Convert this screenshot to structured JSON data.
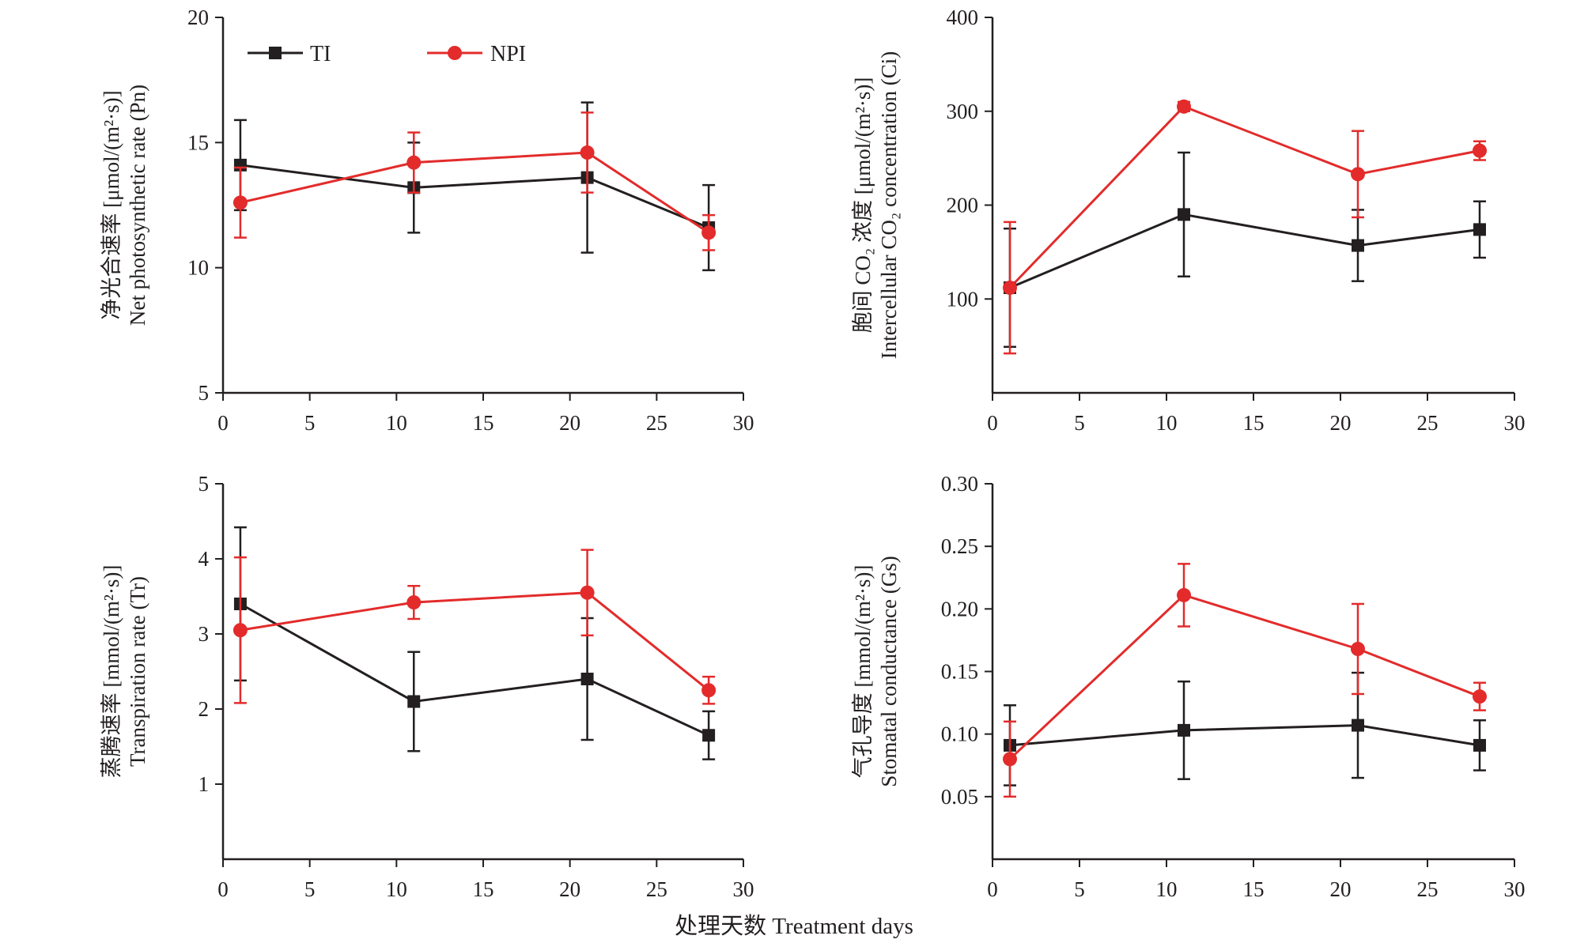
{
  "colors": {
    "TI": "#231f20",
    "NPI": "#e32b2b",
    "axis": "#231f20"
  },
  "legend": [
    {
      "key": "TI",
      "label": "TI",
      "marker": "square"
    },
    {
      "key": "NPI",
      "label": "NPI",
      "marker": "circle"
    }
  ],
  "common_xlabel": "处理天数 Treatment days",
  "chart_data": [
    {
      "type": "line",
      "ylabel_cn": "净光合速率 [μmol/(m²·s)]",
      "ylabel_en": "Net photosynthetic rate (Pn)",
      "xlim": [
        0,
        30
      ],
      "ylim": [
        5,
        20
      ],
      "xticks": [
        0,
        5,
        10,
        15,
        20,
        25,
        30
      ],
      "yticks": [
        5,
        10,
        15,
        20
      ],
      "ytick_labels": [
        "5",
        "10",
        "15",
        "20"
      ],
      "x": [
        1,
        11,
        21,
        28
      ],
      "series": [
        {
          "name": "TI",
          "values": [
            14.1,
            13.2,
            13.6,
            11.6
          ],
          "errors": [
            1.8,
            1.8,
            3.0,
            1.7
          ]
        },
        {
          "name": "NPI",
          "values": [
            12.6,
            14.2,
            14.6,
            11.4
          ],
          "errors": [
            1.4,
            1.2,
            1.6,
            0.7
          ]
        }
      ]
    },
    {
      "type": "line",
      "ylabel_cn": "胞间 CO₂ 浓度 [μmol/(m²·s)]",
      "ylabel_en": "Intercellular CO₂ concentration (Ci)",
      "xlim": [
        0,
        30
      ],
      "ylim": [
        0,
        400
      ],
      "xticks": [
        0,
        5,
        10,
        15,
        20,
        25,
        30
      ],
      "yticks": [
        100,
        200,
        300,
        400
      ],
      "ytick_labels": [
        "100",
        "200",
        "300",
        "400"
      ],
      "x": [
        1,
        11,
        21,
        28
      ],
      "series": [
        {
          "name": "TI",
          "values": [
            112,
            190,
            157,
            174
          ],
          "errors": [
            63,
            66,
            38,
            30
          ]
        },
        {
          "name": "NPI",
          "values": [
            112,
            305,
            233,
            258
          ],
          "errors": [
            70,
            5,
            46,
            10
          ]
        }
      ]
    },
    {
      "type": "line",
      "ylabel_cn": "蒸腾速率 [mmol/(m²·s)]",
      "ylabel_en": "Transpiration rate (Tr)",
      "xlim": [
        0,
        30
      ],
      "ylim": [
        0,
        5
      ],
      "xticks": [
        0,
        5,
        10,
        15,
        20,
        25,
        30
      ],
      "yticks": [
        1,
        2,
        3,
        4,
        5
      ],
      "ytick_labels": [
        "1",
        "2",
        "3",
        "4",
        "5"
      ],
      "x": [
        1,
        11,
        21,
        28
      ],
      "series": [
        {
          "name": "TI",
          "values": [
            3.4,
            2.1,
            2.4,
            1.65
          ],
          "errors": [
            1.02,
            0.66,
            0.81,
            0.32
          ]
        },
        {
          "name": "NPI",
          "values": [
            3.05,
            3.42,
            3.55,
            2.25
          ],
          "errors": [
            0.97,
            0.22,
            0.57,
            0.18
          ]
        }
      ]
    },
    {
      "type": "line",
      "ylabel_cn": "气孔导度 [mmol/(m²·s)]",
      "ylabel_en": "Stomatal conductance (Gs)",
      "xlim": [
        0,
        30
      ],
      "ylim": [
        0,
        0.3
      ],
      "xticks": [
        0,
        5,
        10,
        15,
        20,
        25,
        30
      ],
      "yticks": [
        0.05,
        0.1,
        0.15,
        0.2,
        0.25,
        0.3
      ],
      "ytick_labels": [
        "0.05",
        "0.10",
        "0.15",
        "0.20",
        "0.25",
        "0.30"
      ],
      "x": [
        1,
        11,
        21,
        28
      ],
      "series": [
        {
          "name": "TI",
          "values": [
            0.091,
            0.103,
            0.107,
            0.091
          ],
          "errors": [
            0.032,
            0.039,
            0.042,
            0.02
          ]
        },
        {
          "name": "NPI",
          "values": [
            0.08,
            0.211,
            0.168,
            0.13
          ],
          "errors": [
            0.03,
            0.025,
            0.036,
            0.011
          ]
        }
      ]
    }
  ]
}
